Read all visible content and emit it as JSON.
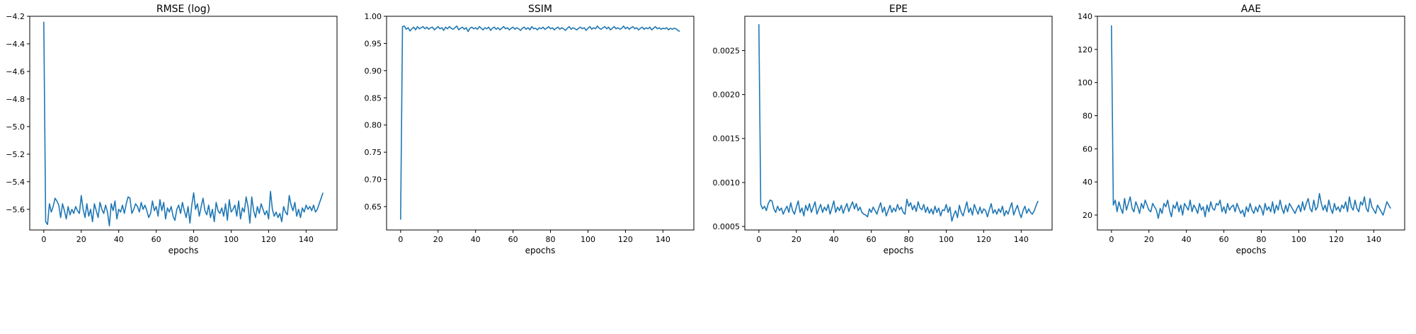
{
  "line_color": "#1f77b4",
  "chart_data": [
    {
      "type": "line",
      "title": "RMSE (log)",
      "xlabel": "epochs",
      "ylabel": "",
      "xlim": [
        -7.5,
        156.5
      ],
      "ylim": [
        -5.75,
        -4.2
      ],
      "xticks": [
        0,
        20,
        40,
        60,
        80,
        100,
        120,
        140
      ],
      "xtick_labels": [
        "0",
        "20",
        "40",
        "60",
        "80",
        "100",
        "120",
        "140"
      ],
      "yticks": [
        -5.6,
        -5.4,
        -5.2,
        -5.0,
        -4.8,
        -4.6,
        -4.4,
        -4.2
      ],
      "ytick_labels": [
        "−5.6",
        "−5.4",
        "−5.2",
        "−5.0",
        "−4.8",
        "−4.6",
        "−4.4",
        "−4.2"
      ],
      "grid": false,
      "series": [
        {
          "values": [
            -4.24,
            -5.69,
            -5.71,
            -5.56,
            -5.62,
            -5.58,
            -5.52,
            -5.54,
            -5.57,
            -5.66,
            -5.56,
            -5.61,
            -5.67,
            -5.58,
            -5.64,
            -5.6,
            -5.63,
            -5.58,
            -5.61,
            -5.63,
            -5.5,
            -5.6,
            -5.66,
            -5.56,
            -5.65,
            -5.6,
            -5.69,
            -5.56,
            -5.61,
            -5.66,
            -5.55,
            -5.6,
            -5.63,
            -5.57,
            -5.62,
            -5.72,
            -5.56,
            -5.61,
            -5.54,
            -5.67,
            -5.6,
            -5.62,
            -5.57,
            -5.63,
            -5.56,
            -5.51,
            -5.52,
            -5.63,
            -5.6,
            -5.56,
            -5.58,
            -5.62,
            -5.55,
            -5.6,
            -5.57,
            -5.61,
            -5.66,
            -5.63,
            -5.54,
            -5.61,
            -5.58,
            -5.65,
            -5.53,
            -5.61,
            -5.55,
            -5.67,
            -5.59,
            -5.62,
            -5.58,
            -5.65,
            -5.68,
            -5.6,
            -5.57,
            -5.63,
            -5.55,
            -5.61,
            -5.66,
            -5.58,
            -5.7,
            -5.57,
            -5.48,
            -5.6,
            -5.56,
            -5.65,
            -5.58,
            -5.52,
            -5.61,
            -5.64,
            -5.57,
            -5.66,
            -5.6,
            -5.69,
            -5.55,
            -5.61,
            -5.63,
            -5.59,
            -5.65,
            -5.56,
            -5.68,
            -5.53,
            -5.62,
            -5.6,
            -5.57,
            -5.65,
            -5.54,
            -5.67,
            -5.59,
            -5.62,
            -5.51,
            -5.58,
            -5.7,
            -5.51,
            -5.61,
            -5.66,
            -5.58,
            -5.63,
            -5.56,
            -5.6,
            -5.64,
            -5.61,
            -5.67,
            -5.47,
            -5.6,
            -5.65,
            -5.62,
            -5.66,
            -5.63,
            -5.69,
            -5.58,
            -5.62,
            -5.64,
            -5.5,
            -5.57,
            -5.61,
            -5.55,
            -5.65,
            -5.6,
            -5.66,
            -5.59,
            -5.62,
            -5.57,
            -5.6,
            -5.58,
            -5.61,
            -5.57,
            -5.62,
            -5.6,
            -5.56,
            -5.52,
            -5.48
          ]
        }
      ]
    },
    {
      "type": "line",
      "title": "SSIM",
      "xlabel": "epochs",
      "ylabel": "",
      "xlim": [
        -7.5,
        156.5
      ],
      "ylim": [
        0.607,
        1.0
      ],
      "xticks": [
        0,
        20,
        40,
        60,
        80,
        100,
        120,
        140
      ],
      "xtick_labels": [
        "0",
        "20",
        "40",
        "60",
        "80",
        "100",
        "120",
        "140"
      ],
      "yticks": [
        0.65,
        0.7,
        0.75,
        0.8,
        0.85,
        0.9,
        0.95,
        1.0
      ],
      "ytick_labels": [
        "0.65",
        "0.70",
        "0.75",
        "0.80",
        "0.85",
        "0.90",
        "0.95",
        "1.00"
      ],
      "grid": false,
      "series": [
        {
          "values": [
            0.626,
            0.981,
            0.982,
            0.976,
            0.979,
            0.973,
            0.977,
            0.98,
            0.975,
            0.981,
            0.977,
            0.979,
            0.981,
            0.977,
            0.98,
            0.976,
            0.979,
            0.98,
            0.975,
            0.978,
            0.981,
            0.977,
            0.979,
            0.974,
            0.98,
            0.977,
            0.981,
            0.978,
            0.976,
            0.979,
            0.982,
            0.975,
            0.978,
            0.98,
            0.976,
            0.979,
            0.972,
            0.978,
            0.98,
            0.977,
            0.979,
            0.976,
            0.981,
            0.978,
            0.975,
            0.979,
            0.977,
            0.98,
            0.974,
            0.978,
            0.98,
            0.976,
            0.979,
            0.975,
            0.978,
            0.981,
            0.977,
            0.979,
            0.975,
            0.978,
            0.98,
            0.976,
            0.979,
            0.977,
            0.974,
            0.978,
            0.98,
            0.976,
            0.979,
            0.975,
            0.981,
            0.977,
            0.978,
            0.975,
            0.979,
            0.977,
            0.98,
            0.976,
            0.978,
            0.981,
            0.977,
            0.979,
            0.975,
            0.978,
            0.98,
            0.976,
            0.979,
            0.977,
            0.974,
            0.978,
            0.981,
            0.976,
            0.979,
            0.977,
            0.975,
            0.978,
            0.98,
            0.977,
            0.979,
            0.974,
            0.978,
            0.981,
            0.976,
            0.979,
            0.977,
            0.982,
            0.978,
            0.976,
            0.979,
            0.981,
            0.977,
            0.98,
            0.975,
            0.978,
            0.981,
            0.977,
            0.979,
            0.976,
            0.978,
            0.982,
            0.977,
            0.98,
            0.976,
            0.979,
            0.981,
            0.977,
            0.979,
            0.975,
            0.978,
            0.98,
            0.976,
            0.979,
            0.977,
            0.98,
            0.975,
            0.978,
            0.981,
            0.977,
            0.979,
            0.976,
            0.978,
            0.977,
            0.979,
            0.975,
            0.978,
            0.976,
            0.978,
            0.977,
            0.974,
            0.972
          ]
        }
      ]
    },
    {
      "type": "line",
      "title": "EPE",
      "xlabel": "epochs",
      "ylabel": "",
      "xlim": [
        -7.5,
        156.5
      ],
      "ylim": [
        0.00046,
        0.00289
      ],
      "xticks": [
        0,
        20,
        40,
        60,
        80,
        100,
        120,
        140
      ],
      "xtick_labels": [
        "0",
        "20",
        "40",
        "60",
        "80",
        "100",
        "120",
        "140"
      ],
      "yticks": [
        0.0005,
        0.001,
        0.0015,
        0.002,
        0.0025
      ],
      "ytick_labels": [
        "0.0005",
        "0.0010",
        "0.0015",
        "0.0020",
        "0.0025"
      ],
      "grid": false,
      "series": [
        {
          "values": [
            0.0028,
            0.00075,
            0.0007,
            0.00073,
            0.00068,
            0.00076,
            0.0008,
            0.00079,
            0.0007,
            0.00066,
            0.00073,
            0.00068,
            0.00071,
            0.00064,
            0.00069,
            0.00073,
            0.00066,
            0.00077,
            0.00068,
            0.00064,
            0.00072,
            0.00079,
            0.00066,
            0.00071,
            0.00062,
            0.00074,
            0.00068,
            0.00076,
            0.00066,
            0.00072,
            0.00078,
            0.00064,
            0.0007,
            0.00075,
            0.00066,
            0.00072,
            0.00068,
            0.00075,
            0.00064,
            0.00071,
            0.00079,
            0.00066,
            0.00072,
            0.00068,
            0.00074,
            0.00065,
            0.00071,
            0.00076,
            0.00067,
            0.00073,
            0.00078,
            0.0007,
            0.00076,
            0.00068,
            0.00072,
            0.00066,
            0.00064,
            0.00063,
            0.00061,
            0.0007,
            0.00066,
            0.00072,
            0.00068,
            0.00064,
            0.00071,
            0.00077,
            0.00066,
            0.00072,
            0.00062,
            0.00068,
            0.00074,
            0.00066,
            0.00071,
            0.00067,
            0.00075,
            0.00069,
            0.00072,
            0.00066,
            0.00064,
            0.00081,
            0.00073,
            0.00077,
            0.00069,
            0.00074,
            0.00067,
            0.00078,
            0.00071,
            0.00069,
            0.00075,
            0.00066,
            0.00072,
            0.00065,
            0.0007,
            0.00064,
            0.00073,
            0.00066,
            0.00071,
            0.00062,
            0.00069,
            0.00068,
            0.00075,
            0.00066,
            0.00072,
            0.00056,
            0.00063,
            0.00068,
            0.0006,
            0.00074,
            0.00066,
            0.00062,
            0.0007,
            0.00078,
            0.00066,
            0.00071,
            0.00063,
            0.00075,
            0.00069,
            0.00064,
            0.00072,
            0.00065,
            0.0007,
            0.00068,
            0.00061,
            0.00069,
            0.00076,
            0.00065,
            0.00069,
            0.00064,
            0.0007,
            0.00066,
            0.00073,
            0.00062,
            0.00068,
            0.00064,
            0.00071,
            0.00077,
            0.00063,
            0.00069,
            0.00074,
            0.00066,
            0.0006,
            0.00068,
            0.00073,
            0.00065,
            0.0007,
            0.00066,
            0.00064,
            0.00068,
            0.00074,
            0.00079
          ]
        }
      ]
    },
    {
      "type": "line",
      "title": "AAE",
      "xlabel": "epochs",
      "ylabel": "",
      "xlim": [
        -7.5,
        156.5
      ],
      "ylim": [
        11,
        140
      ],
      "xticks": [
        0,
        20,
        40,
        60,
        80,
        100,
        120,
        140
      ],
      "xtick_labels": [
        "0",
        "20",
        "40",
        "60",
        "80",
        "100",
        "120",
        "140"
      ],
      "yticks": [
        20,
        40,
        60,
        80,
        100,
        120,
        140
      ],
      "ytick_labels": [
        "20",
        "40",
        "60",
        "80",
        "100",
        "120",
        "140"
      ],
      "grid": false,
      "series": [
        {
          "values": [
            134.5,
            26,
            29,
            22,
            28,
            24,
            21,
            30,
            23,
            27,
            31,
            24,
            22,
            28,
            25,
            21,
            27,
            24,
            29,
            26,
            23,
            22,
            27,
            25,
            23,
            18,
            24,
            21,
            27,
            25,
            29,
            23,
            19,
            26,
            24,
            28,
            22,
            26,
            20,
            27,
            25,
            23,
            29,
            22,
            26,
            24,
            21,
            27,
            23,
            25,
            19,
            26,
            22,
            28,
            24,
            23,
            27,
            26,
            29,
            22,
            25,
            21,
            27,
            23,
            25,
            26,
            22,
            27,
            24,
            21,
            23,
            19,
            25,
            22,
            27,
            23,
            21,
            25,
            22,
            26,
            24,
            20,
            27,
            23,
            25,
            22,
            28,
            21,
            26,
            23,
            29,
            24,
            21,
            26,
            22,
            27,
            25,
            23,
            21,
            24,
            26,
            22,
            28,
            23,
            27,
            30,
            24,
            22,
            29,
            23,
            25,
            33,
            27,
            23,
            26,
            22,
            29,
            24,
            21,
            27,
            23,
            25,
            22,
            26,
            24,
            28,
            22,
            31,
            25,
            23,
            29,
            24,
            22,
            28,
            26,
            31,
            24,
            22,
            30,
            25,
            23,
            21,
            26,
            24,
            22,
            20,
            24,
            28,
            26,
            24
          ]
        }
      ]
    }
  ]
}
